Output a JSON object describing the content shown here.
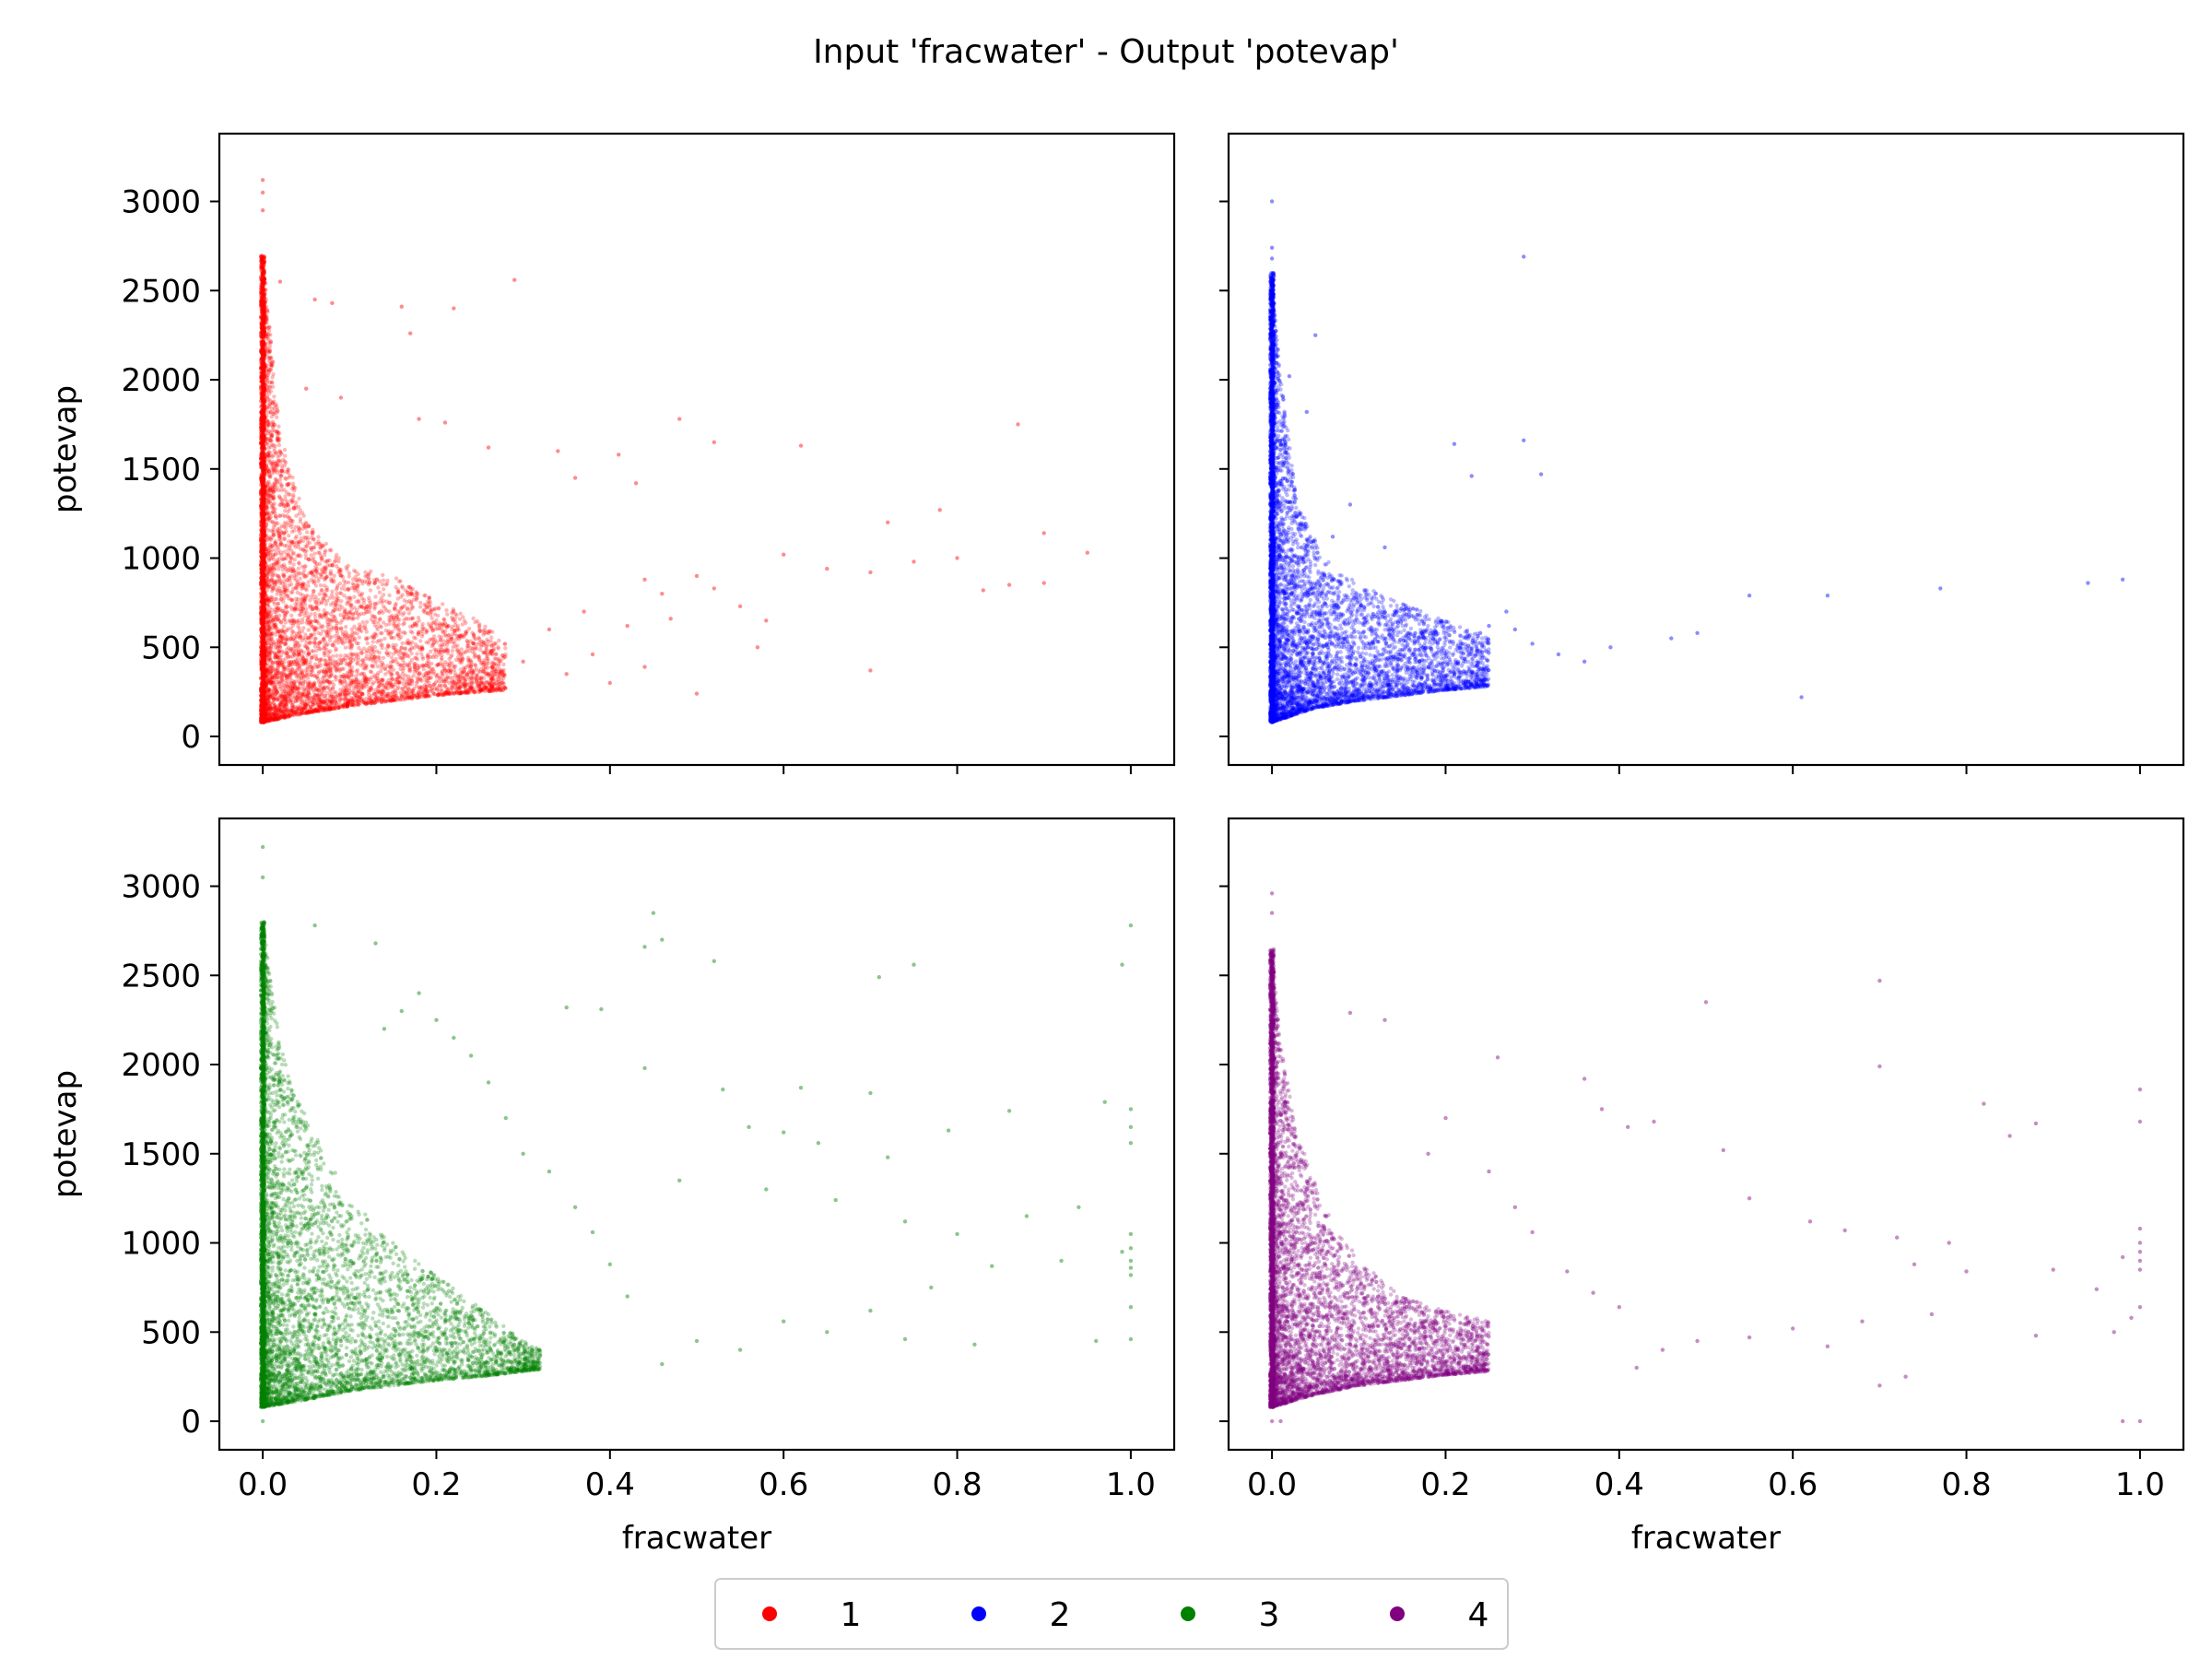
{
  "figure": {
    "title": "Input 'fracwater' - Output 'potevap'"
  },
  "legend": {
    "placement": "bottom-center",
    "entries": [
      {
        "label": "1",
        "color": "#ff0000"
      },
      {
        "label": "2",
        "color": "#0000ff"
      },
      {
        "label": "3",
        "color": "#008000"
      },
      {
        "label": "4",
        "color": "#800080"
      }
    ]
  },
  "chart_data": [
    {
      "type": "scatter",
      "panel": "top-left",
      "series_label": "1",
      "color": "#ff0000",
      "xlabel": "",
      "ylabel": "potevap",
      "xlim": [
        -0.05,
        1.05
      ],
      "ylim": [
        -160,
        3380
      ],
      "xticks": [
        0.0,
        0.2,
        0.4,
        0.6,
        0.8,
        1.0
      ],
      "xtick_labels_shown": false,
      "yticks": [
        0,
        500,
        1000,
        1500,
        2000,
        2500,
        3000
      ],
      "ytick_labels_shown": true,
      "grid": false,
      "points": [
        [
          0.0,
          3120
        ],
        [
          0.0,
          3050
        ],
        [
          0.0,
          2950
        ],
        [
          0.0,
          2680
        ],
        [
          0.02,
          2550
        ],
        [
          0.06,
          2450
        ],
        [
          0.08,
          2430
        ],
        [
          0.16,
          2410
        ],
        [
          0.22,
          2400
        ],
        [
          0.29,
          2560
        ],
        [
          0.17,
          2260
        ],
        [
          0.05,
          1950
        ],
        [
          0.09,
          1900
        ],
        [
          0.18,
          1780
        ],
        [
          0.21,
          1760
        ],
        [
          0.26,
          1620
        ],
        [
          0.34,
          1600
        ],
        [
          0.41,
          1580
        ],
        [
          0.48,
          1780
        ],
        [
          0.52,
          1650
        ],
        [
          0.62,
          1630
        ],
        [
          0.36,
          1450
        ],
        [
          0.43,
          1420
        ],
        [
          0.72,
          1200
        ],
        [
          0.78,
          1270
        ],
        [
          0.87,
          1750
        ],
        [
          0.9,
          1140
        ],
        [
          0.95,
          1030
        ],
        [
          0.6,
          1020
        ],
        [
          0.65,
          940
        ],
        [
          0.7,
          920
        ],
        [
          0.75,
          980
        ],
        [
          0.8,
          1000
        ],
        [
          0.83,
          820
        ],
        [
          0.86,
          850
        ],
        [
          0.9,
          860
        ],
        [
          0.44,
          880
        ],
        [
          0.5,
          900
        ],
        [
          0.46,
          800
        ],
        [
          0.52,
          830
        ],
        [
          0.55,
          730
        ],
        [
          0.58,
          650
        ],
        [
          0.57,
          500
        ],
        [
          0.7,
          370
        ],
        [
          0.5,
          240
        ],
        [
          0.47,
          660
        ],
        [
          0.42,
          620
        ],
        [
          0.37,
          700
        ],
        [
          0.33,
          600
        ],
        [
          0.3,
          420
        ],
        [
          0.35,
          350
        ],
        [
          0.38,
          460
        ],
        [
          0.4,
          300
        ],
        [
          0.44,
          390
        ]
      ],
      "dense_band": {
        "x_max": 0.28,
        "y_upper": [
          [
            0.0,
            2700
          ],
          [
            0.02,
            1700
          ],
          [
            0.05,
            1200
          ],
          [
            0.1,
            950
          ],
          [
            0.15,
            900
          ],
          [
            0.2,
            760
          ],
          [
            0.25,
            650
          ],
          [
            0.28,
            520
          ]
        ],
        "y_lower": [
          [
            0.0,
            80
          ],
          [
            0.05,
            130
          ],
          [
            0.1,
            170
          ],
          [
            0.15,
            200
          ],
          [
            0.2,
            230
          ],
          [
            0.25,
            250
          ],
          [
            0.28,
            260
          ]
        ]
      }
    },
    {
      "type": "scatter",
      "panel": "top-right",
      "series_label": "2",
      "color": "#0000ff",
      "xlabel": "",
      "ylabel": "",
      "xlim": [
        -0.05,
        1.05
      ],
      "ylim": [
        -160,
        3380
      ],
      "xticks": [
        0.0,
        0.2,
        0.4,
        0.6,
        0.8,
        1.0
      ],
      "xtick_labels_shown": false,
      "yticks": [
        0,
        500,
        1000,
        1500,
        2000,
        2500,
        3000
      ],
      "ytick_labels_shown": false,
      "grid": false,
      "points": [
        [
          0.0,
          3000
        ],
        [
          0.0,
          2740
        ],
        [
          0.0,
          2680
        ],
        [
          0.29,
          2690
        ],
        [
          0.05,
          2250
        ],
        [
          0.02,
          2020
        ],
        [
          0.04,
          1820
        ],
        [
          0.21,
          1640
        ],
        [
          0.29,
          1660
        ],
        [
          0.31,
          1470
        ],
        [
          0.23,
          1460
        ],
        [
          0.09,
          1300
        ],
        [
          0.07,
          1120
        ],
        [
          0.13,
          1060
        ],
        [
          0.55,
          790
        ],
        [
          0.64,
          790
        ],
        [
          0.77,
          830
        ],
        [
          0.94,
          860
        ],
        [
          0.98,
          880
        ],
        [
          0.61,
          220
        ],
        [
          0.49,
          580
        ],
        [
          0.46,
          550
        ],
        [
          0.39,
          500
        ],
        [
          0.36,
          420
        ],
        [
          0.33,
          460
        ],
        [
          0.3,
          520
        ],
        [
          0.28,
          600
        ],
        [
          0.27,
          700
        ],
        [
          0.25,
          620
        ],
        [
          0.24,
          580
        ]
      ],
      "dense_band": {
        "x_max": 0.25,
        "y_upper": [
          [
            0.0,
            2600
          ],
          [
            0.01,
            2000
          ],
          [
            0.03,
            1300
          ],
          [
            0.06,
            1000
          ],
          [
            0.1,
            850
          ],
          [
            0.15,
            750
          ],
          [
            0.2,
            650
          ],
          [
            0.25,
            550
          ]
        ],
        "y_lower": [
          [
            0.0,
            80
          ],
          [
            0.05,
            160
          ],
          [
            0.1,
            200
          ],
          [
            0.15,
            230
          ],
          [
            0.2,
            260
          ],
          [
            0.25,
            280
          ]
        ]
      }
    },
    {
      "type": "scatter",
      "panel": "bottom-left",
      "series_label": "3",
      "color": "#008000",
      "xlabel": "fracwater",
      "ylabel": "potevap",
      "xlim": [
        -0.05,
        1.05
      ],
      "ylim": [
        -160,
        3380
      ],
      "xticks": [
        0.0,
        0.2,
        0.4,
        0.6,
        0.8,
        1.0
      ],
      "xtick_labels": [
        "0.0",
        "0.2",
        "0.4",
        "0.6",
        "0.8",
        "1.0"
      ],
      "yticks": [
        0,
        500,
        1000,
        1500,
        2000,
        2500,
        3000
      ],
      "ytick_labels_shown": true,
      "grid": false,
      "points": [
        [
          0.0,
          3220
        ],
        [
          0.0,
          3050
        ],
        [
          0.0,
          0
        ],
        [
          0.06,
          2780
        ],
        [
          0.13,
          2680
        ],
        [
          0.45,
          2850
        ],
        [
          0.44,
          2660
        ],
        [
          0.46,
          2700
        ],
        [
          0.52,
          2580
        ],
        [
          0.71,
          2490
        ],
        [
          0.75,
          2560
        ],
        [
          0.99,
          2560
        ],
        [
          1.0,
          2780
        ],
        [
          0.35,
          2320
        ],
        [
          0.39,
          2310
        ],
        [
          0.44,
          1980
        ],
        [
          0.53,
          1860
        ],
        [
          0.56,
          1650
        ],
        [
          0.6,
          1620
        ],
        [
          0.62,
          1870
        ],
        [
          0.64,
          1560
        ],
        [
          0.7,
          1840
        ],
        [
          0.72,
          1480
        ],
        [
          0.79,
          1630
        ],
        [
          0.86,
          1740
        ],
        [
          0.97,
          1790
        ],
        [
          1.0,
          1750
        ],
        [
          1.0,
          1650
        ],
        [
          1.0,
          1560
        ],
        [
          0.48,
          1350
        ],
        [
          0.58,
          1300
        ],
        [
          0.66,
          1240
        ],
        [
          0.74,
          1120
        ],
        [
          0.8,
          1050
        ],
        [
          0.88,
          1150
        ],
        [
          0.94,
          1200
        ],
        [
          1.0,
          1050
        ],
        [
          1.0,
          970
        ],
        [
          1.0,
          900
        ],
        [
          1.0,
          860
        ],
        [
          1.0,
          820
        ],
        [
          0.99,
          950
        ],
        [
          0.92,
          900
        ],
        [
          0.84,
          870
        ],
        [
          0.77,
          750
        ],
        [
          0.7,
          620
        ],
        [
          0.65,
          500
        ],
        [
          0.6,
          560
        ],
        [
          0.55,
          400
        ],
        [
          0.5,
          450
        ],
        [
          0.46,
          320
        ],
        [
          0.42,
          700
        ],
        [
          0.4,
          880
        ],
        [
          0.38,
          1060
        ],
        [
          0.36,
          1200
        ],
        [
          0.33,
          1400
        ],
        [
          0.3,
          1500
        ],
        [
          0.28,
          1700
        ],
        [
          0.26,
          1900
        ],
        [
          0.24,
          2050
        ],
        [
          0.22,
          2150
        ],
        [
          0.2,
          2250
        ],
        [
          0.18,
          2400
        ],
        [
          0.16,
          2300
        ],
        [
          0.14,
          2200
        ],
        [
          1.0,
          640
        ],
        [
          1.0,
          460
        ],
        [
          0.96,
          450
        ],
        [
          0.82,
          430
        ],
        [
          0.74,
          460
        ]
      ],
      "dense_band": {
        "x_max": 0.32,
        "y_upper": [
          [
            0.0,
            2800
          ],
          [
            0.02,
            2100
          ],
          [
            0.05,
            1700
          ],
          [
            0.1,
            1250
          ],
          [
            0.15,
            1000
          ],
          [
            0.2,
            820
          ],
          [
            0.25,
            640
          ],
          [
            0.3,
            450
          ],
          [
            0.32,
            400
          ]
        ],
        "y_lower": [
          [
            0.0,
            80
          ],
          [
            0.05,
            120
          ],
          [
            0.1,
            170
          ],
          [
            0.15,
            200
          ],
          [
            0.2,
            230
          ],
          [
            0.25,
            250
          ],
          [
            0.3,
            280
          ],
          [
            0.32,
            290
          ]
        ]
      }
    },
    {
      "type": "scatter",
      "panel": "bottom-right",
      "series_label": "4",
      "color": "#800080",
      "xlabel": "fracwater",
      "ylabel": "",
      "xlim": [
        -0.05,
        1.05
      ],
      "ylim": [
        -160,
        3380
      ],
      "xticks": [
        0.0,
        0.2,
        0.4,
        0.6,
        0.8,
        1.0
      ],
      "xtick_labels": [
        "0.0",
        "0.2",
        "0.4",
        "0.6",
        "0.8",
        "1.0"
      ],
      "yticks": [
        0,
        500,
        1000,
        1500,
        2000,
        2500,
        3000
      ],
      "ytick_labels_shown": false,
      "grid": false,
      "points": [
        [
          0.0,
          2960
        ],
        [
          0.0,
          2850
        ],
        [
          0.0,
          0
        ],
        [
          0.01,
          0
        ],
        [
          0.98,
          0
        ],
        [
          1.0,
          0
        ],
        [
          0.5,
          2350
        ],
        [
          0.7,
          2470
        ],
        [
          0.09,
          2290
        ],
        [
          0.13,
          2250
        ],
        [
          0.26,
          2040
        ],
        [
          0.36,
          1920
        ],
        [
          0.38,
          1750
        ],
        [
          0.41,
          1650
        ],
        [
          0.44,
          1680
        ],
        [
          0.52,
          1520
        ],
        [
          0.7,
          1990
        ],
        [
          0.82,
          1780
        ],
        [
          0.85,
          1600
        ],
        [
          0.88,
          1670
        ],
        [
          1.0,
          1860
        ],
        [
          1.0,
          1680
        ],
        [
          1.0,
          1080
        ],
        [
          1.0,
          1000
        ],
        [
          1.0,
          950
        ],
        [
          1.0,
          900
        ],
        [
          1.0,
          850
        ],
        [
          0.98,
          920
        ],
        [
          0.55,
          1250
        ],
        [
          0.62,
          1120
        ],
        [
          0.66,
          1070
        ],
        [
          0.72,
          1030
        ],
        [
          0.78,
          1000
        ],
        [
          0.74,
          880
        ],
        [
          0.8,
          840
        ],
        [
          0.9,
          850
        ],
        [
          0.95,
          740
        ],
        [
          0.88,
          480
        ],
        [
          0.76,
          600
        ],
        [
          0.68,
          560
        ],
        [
          0.6,
          520
        ],
        [
          0.55,
          470
        ],
        [
          0.49,
          450
        ],
        [
          0.45,
          400
        ],
        [
          0.42,
          300
        ],
        [
          0.4,
          640
        ],
        [
          0.37,
          720
        ],
        [
          0.34,
          840
        ],
        [
          0.3,
          1060
        ],
        [
          0.28,
          1200
        ],
        [
          0.25,
          1400
        ],
        [
          0.2,
          1700
        ],
        [
          0.18,
          1500
        ],
        [
          1.0,
          640
        ],
        [
          0.99,
          580
        ],
        [
          0.97,
          500
        ],
        [
          0.7,
          200
        ],
        [
          0.73,
          250
        ],
        [
          0.64,
          420
        ]
      ],
      "dense_band": {
        "x_max": 0.25,
        "y_upper": [
          [
            0.0,
            2650
          ],
          [
            0.01,
            2100
          ],
          [
            0.03,
            1600
          ],
          [
            0.06,
            1200
          ],
          [
            0.1,
            900
          ],
          [
            0.15,
            700
          ],
          [
            0.2,
            620
          ],
          [
            0.25,
            560
          ]
        ],
        "y_lower": [
          [
            0.0,
            80
          ],
          [
            0.05,
            150
          ],
          [
            0.1,
            200
          ],
          [
            0.15,
            230
          ],
          [
            0.2,
            260
          ],
          [
            0.25,
            280
          ]
        ]
      }
    }
  ]
}
